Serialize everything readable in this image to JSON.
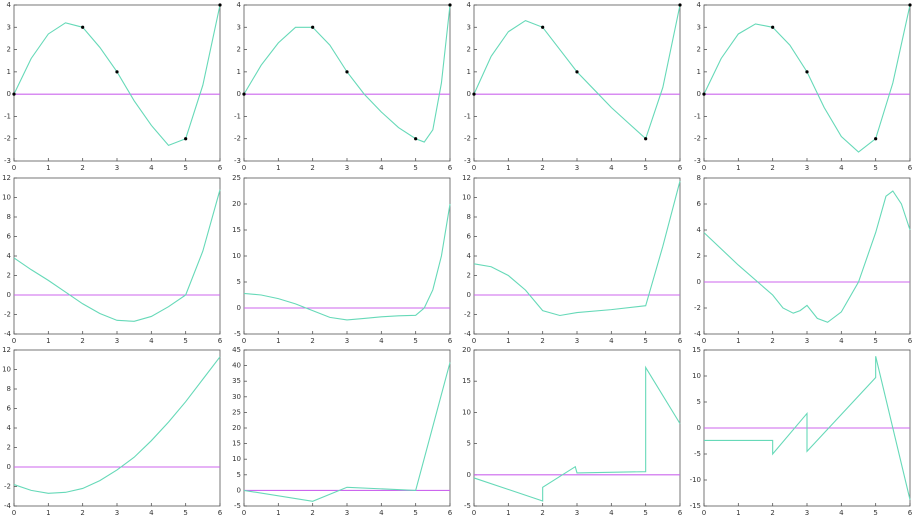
{
  "chart_data": [
    {
      "type": "line",
      "xlim": [
        0,
        6
      ],
      "xticks": [
        0,
        1,
        2,
        3,
        4,
        5,
        6
      ],
      "ylim": [
        -3,
        4
      ],
      "yticks": [
        -3,
        -2,
        -1,
        0,
        1,
        2,
        3,
        4
      ],
      "series": [
        {
          "style": "line",
          "color": "#cc66ee",
          "x": [
            0,
            6
          ],
          "values": [
            0,
            0
          ]
        },
        {
          "style": "line",
          "color": "#66d9b8",
          "x": [
            0,
            0.5,
            1,
            1.5,
            2,
            2.5,
            3,
            3.5,
            4,
            4.5,
            5,
            5.5,
            6
          ],
          "values": [
            0,
            1.6,
            2.7,
            3.2,
            3.0,
            2.1,
            1.0,
            -0.3,
            -1.4,
            -2.3,
            -2.0,
            0.4,
            4
          ]
        },
        {
          "style": "points",
          "color": "#000000",
          "x": [
            0,
            2,
            3,
            5,
            6
          ],
          "values": [
            0,
            3,
            1,
            -2,
            4
          ]
        }
      ]
    },
    {
      "type": "line",
      "xlim": [
        0,
        6
      ],
      "xticks": [
        0,
        1,
        2,
        3,
        4,
        5,
        6
      ],
      "ylim": [
        -3,
        4
      ],
      "yticks": [
        -3,
        -2,
        -1,
        0,
        1,
        2,
        3,
        4
      ],
      "series": [
        {
          "style": "line",
          "color": "#cc66ee",
          "x": [
            0,
            6
          ],
          "values": [
            0,
            0
          ]
        },
        {
          "style": "line",
          "color": "#66d9b8",
          "x": [
            0,
            0.5,
            1,
            1.5,
            2,
            2.5,
            3,
            3.5,
            4,
            4.5,
            5,
            5.25,
            5.5,
            5.75,
            6
          ],
          "values": [
            0,
            1.3,
            2.3,
            3.0,
            3.0,
            2.2,
            1.0,
            0.0,
            -0.8,
            -1.5,
            -2.0,
            -2.15,
            -1.6,
            0.5,
            4
          ]
        },
        {
          "style": "points",
          "color": "#000000",
          "x": [
            0,
            2,
            3,
            5,
            6
          ],
          "values": [
            0,
            3,
            1,
            -2,
            4
          ]
        }
      ]
    },
    {
      "type": "line",
      "xlim": [
        0,
        6
      ],
      "xticks": [
        0,
        1,
        2,
        3,
        4,
        5,
        6
      ],
      "ylim": [
        -3,
        4
      ],
      "yticks": [
        -3,
        -2,
        -1,
        0,
        1,
        2,
        3,
        4
      ],
      "series": [
        {
          "style": "line",
          "color": "#cc66ee",
          "x": [
            0,
            6
          ],
          "values": [
            0,
            0
          ]
        },
        {
          "style": "line",
          "color": "#66d9b8",
          "x": [
            0,
            0.5,
            1,
            1.5,
            2,
            2.5,
            3,
            3.5,
            4,
            4.5,
            5,
            5.5,
            6
          ],
          "values": [
            0,
            1.7,
            2.8,
            3.3,
            3.0,
            2.0,
            1.0,
            0.2,
            -0.6,
            -1.3,
            -2.0,
            0.3,
            4
          ]
        },
        {
          "style": "points",
          "color": "#000000",
          "x": [
            0,
            2,
            3,
            5,
            6
          ],
          "values": [
            0,
            3,
            1,
            -2,
            4
          ]
        }
      ]
    },
    {
      "type": "line",
      "xlim": [
        0,
        6
      ],
      "xticks": [
        0,
        1,
        2,
        3,
        4,
        5,
        6
      ],
      "ylim": [
        -3,
        4
      ],
      "yticks": [
        -3,
        -2,
        -1,
        0,
        1,
        2,
        3,
        4
      ],
      "series": [
        {
          "style": "line",
          "color": "#cc66ee",
          "x": [
            0,
            6
          ],
          "values": [
            0,
            0
          ]
        },
        {
          "style": "line",
          "color": "#66d9b8",
          "x": [
            0,
            0.5,
            1,
            1.5,
            2,
            2.5,
            3,
            3.5,
            4,
            4.5,
            5,
            5.5,
            6
          ],
          "values": [
            0,
            1.6,
            2.7,
            3.15,
            3.0,
            2.2,
            1.0,
            -0.6,
            -1.9,
            -2.6,
            -2.0,
            0.5,
            4
          ]
        },
        {
          "style": "points",
          "color": "#000000",
          "x": [
            0,
            2,
            3,
            5,
            6
          ],
          "values": [
            0,
            3,
            1,
            -2,
            4
          ]
        }
      ]
    },
    {
      "type": "line",
      "xlim": [
        0,
        6
      ],
      "xticks": [
        0,
        1,
        2,
        3,
        4,
        5,
        6
      ],
      "ylim": [
        -4,
        12
      ],
      "yticks": [
        -4,
        -2,
        0,
        2,
        4,
        6,
        8,
        10,
        12
      ],
      "series": [
        {
          "style": "line",
          "color": "#cc66ee",
          "x": [
            0,
            6
          ],
          "values": [
            0,
            0
          ]
        },
        {
          "style": "line",
          "color": "#66d9b8",
          "x": [
            0,
            0.5,
            1,
            1.5,
            2,
            2.5,
            3,
            3.5,
            4,
            4.5,
            5,
            5.5,
            6
          ],
          "values": [
            3.8,
            2.6,
            1.5,
            0.3,
            -0.9,
            -1.9,
            -2.6,
            -2.7,
            -2.2,
            -1.2,
            0.0,
            4.5,
            10.8
          ]
        }
      ]
    },
    {
      "type": "line",
      "xlim": [
        0,
        6
      ],
      "xticks": [
        0,
        1,
        2,
        3,
        4,
        5,
        6
      ],
      "ylim": [
        -5,
        25
      ],
      "yticks": [
        -5,
        0,
        5,
        10,
        15,
        20,
        25
      ],
      "series": [
        {
          "style": "line",
          "color": "#cc66ee",
          "x": [
            0,
            6
          ],
          "values": [
            0,
            0
          ]
        },
        {
          "style": "line",
          "color": "#66d9b8",
          "x": [
            0,
            0.5,
            1,
            1.5,
            2,
            2.5,
            3,
            3.5,
            4,
            4.5,
            5,
            5.25,
            5.5,
            5.75,
            6
          ],
          "values": [
            2.8,
            2.5,
            1.8,
            0.8,
            -0.5,
            -1.8,
            -2.3,
            -2.0,
            -1.7,
            -1.5,
            -1.4,
            0,
            3.5,
            10,
            20
          ]
        }
      ]
    },
    {
      "type": "line",
      "xlim": [
        0,
        6
      ],
      "xticks": [
        0,
        1,
        2,
        3,
        4,
        5,
        6
      ],
      "ylim": [
        -4,
        12
      ],
      "yticks": [
        -4,
        -2,
        0,
        2,
        4,
        6,
        8,
        10,
        12
      ],
      "series": [
        {
          "style": "line",
          "color": "#cc66ee",
          "x": [
            0,
            6
          ],
          "values": [
            0,
            0
          ]
        },
        {
          "style": "line",
          "color": "#66d9b8",
          "x": [
            0,
            0.5,
            1,
            1.5,
            2,
            2.5,
            3,
            4,
            5,
            5.5,
            6
          ],
          "values": [
            3.2,
            2.9,
            2.0,
            0.5,
            -1.6,
            -2.1,
            -1.8,
            -1.5,
            -1.1,
            5,
            11.7
          ]
        }
      ]
    },
    {
      "type": "line",
      "xlim": [
        0,
        6
      ],
      "xticks": [
        0,
        1,
        2,
        3,
        4,
        5,
        6
      ],
      "ylim": [
        -4,
        8
      ],
      "yticks": [
        -4,
        -2,
        0,
        2,
        4,
        6,
        8
      ],
      "series": [
        {
          "style": "line",
          "color": "#cc66ee",
          "x": [
            0,
            6
          ],
          "values": [
            0,
            0
          ]
        },
        {
          "style": "line",
          "color": "#66d9b8",
          "x": [
            0,
            1,
            2,
            2.3,
            2.6,
            2.8,
            3,
            3.3,
            3.6,
            4,
            4.5,
            5,
            5.3,
            5.5,
            5.75,
            6
          ],
          "values": [
            3.8,
            1.3,
            -1.0,
            -2.0,
            -2.4,
            -2.2,
            -1.8,
            -2.8,
            -3.1,
            -2.3,
            0.0,
            3.8,
            6.6,
            7.0,
            6.0,
            4.0
          ]
        }
      ]
    },
    {
      "type": "line",
      "xlim": [
        0,
        6
      ],
      "xticks": [
        0,
        1,
        2,
        3,
        4,
        5,
        6
      ],
      "ylim": [
        -4,
        12
      ],
      "yticks": [
        -4,
        -2,
        0,
        2,
        4,
        6,
        8,
        10,
        12
      ],
      "series": [
        {
          "style": "line",
          "color": "#cc66ee",
          "x": [
            0,
            6
          ],
          "values": [
            0,
            0
          ]
        },
        {
          "style": "line",
          "color": "#66d9b8",
          "x": [
            0,
            0.5,
            1,
            1.5,
            2,
            2.5,
            3,
            3.5,
            4,
            4.5,
            5,
            5.5,
            6
          ],
          "values": [
            -1.8,
            -2.4,
            -2.7,
            -2.6,
            -2.2,
            -1.4,
            -0.3,
            1.0,
            2.7,
            4.6,
            6.7,
            9.0,
            11.3
          ]
        }
      ]
    },
    {
      "type": "line",
      "xlim": [
        0,
        6
      ],
      "xticks": [
        0,
        1,
        2,
        3,
        4,
        5,
        6
      ],
      "ylim": [
        -5,
        45
      ],
      "yticks": [
        -5,
        0,
        5,
        10,
        15,
        20,
        25,
        30,
        35,
        40,
        45
      ],
      "series": [
        {
          "style": "line",
          "color": "#cc66ee",
          "x": [
            0,
            6
          ],
          "values": [
            0,
            0
          ]
        },
        {
          "style": "line",
          "color": "#66d9b8",
          "x": [
            0,
            2,
            3,
            5,
            6
          ],
          "values": [
            0,
            -3.5,
            1,
            0,
            41
          ]
        }
      ]
    },
    {
      "type": "line",
      "xlim": [
        0,
        6
      ],
      "xticks": [
        0,
        1,
        2,
        3,
        4,
        5,
        6
      ],
      "ylim": [
        -5,
        20
      ],
      "yticks": [
        -5,
        0,
        5,
        10,
        15,
        20
      ],
      "series": [
        {
          "style": "line",
          "color": "#cc66ee",
          "x": [
            0,
            6
          ],
          "values": [
            0,
            0
          ]
        },
        {
          "style": "line",
          "color": "#66d9b8",
          "x": [
            0,
            2,
            2,
            2.95,
            3,
            5,
            5,
            6
          ],
          "values": [
            -0.5,
            -4.2,
            -2,
            1.3,
            0.3,
            0.5,
            17.2,
            8.2
          ]
        }
      ]
    },
    {
      "type": "line",
      "xlim": [
        0,
        6
      ],
      "xticks": [
        0,
        1,
        2,
        3,
        4,
        5,
        6
      ],
      "ylim": [
        -15,
        15
      ],
      "yticks": [
        -15,
        -10,
        -5,
        0,
        5,
        10,
        15
      ],
      "series": [
        {
          "style": "line",
          "color": "#cc66ee",
          "x": [
            0,
            6
          ],
          "values": [
            0,
            0
          ]
        },
        {
          "style": "line",
          "color": "#66d9b8",
          "x": [
            0,
            2,
            2,
            3,
            3,
            5,
            5,
            6
          ],
          "values": [
            -2.4,
            -2.4,
            -5,
            2.8,
            -4.5,
            9.7,
            13.8,
            -13.8
          ]
        }
      ]
    }
  ]
}
